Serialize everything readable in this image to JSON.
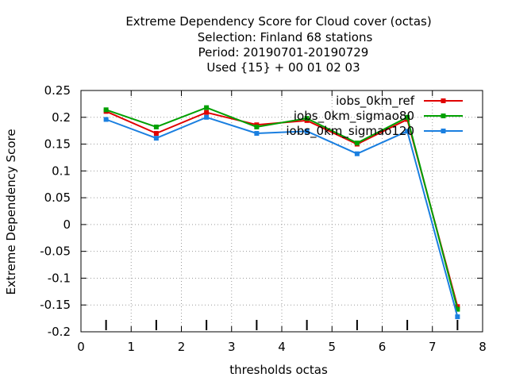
{
  "chart_data": {
    "type": "line",
    "title_lines": [
      "Extreme Dependency Score  for Cloud cover (octas)",
      "Selection: Finland     68 stations",
      "Period: 20190701-20190729",
      "Used {15} + 00 01 02 03"
    ],
    "xlabel": "thresholds octas",
    "ylabel": "Extreme Dependency Score",
    "xlim": [
      0,
      8
    ],
    "ylim": [
      -0.2,
      0.25
    ],
    "xticks": [
      "0",
      "1",
      "2",
      "3",
      "4",
      "5",
      "6",
      "7",
      "8"
    ],
    "yticks": [
      "0.25",
      "0.2",
      "0.15",
      "0.1",
      "0.05",
      "0",
      "-0.05",
      "-0.1",
      "-0.15",
      "-0.2"
    ],
    "grid": true,
    "legend_position": "top-right",
    "x": [
      0.5,
      1.5,
      2.5,
      3.5,
      4.5,
      5.5,
      6.5,
      7.5
    ],
    "series": [
      {
        "name": "iobs_0km_ref",
        "color": "#e00000",
        "values": [
          0.211,
          0.17,
          0.209,
          0.186,
          0.194,
          0.15,
          0.196,
          -0.153
        ]
      },
      {
        "name": "iobs_0km_sigmao80",
        "color": "#00a000",
        "values": [
          0.214,
          0.182,
          0.218,
          0.182,
          0.198,
          0.152,
          0.2,
          -0.158
        ]
      },
      {
        "name": "iobs_0km_sigmao120",
        "color": "#1a7fe0",
        "values": [
          0.196,
          0.161,
          0.2,
          0.17,
          0.174,
          0.132,
          0.174,
          -0.172
        ]
      }
    ]
  }
}
